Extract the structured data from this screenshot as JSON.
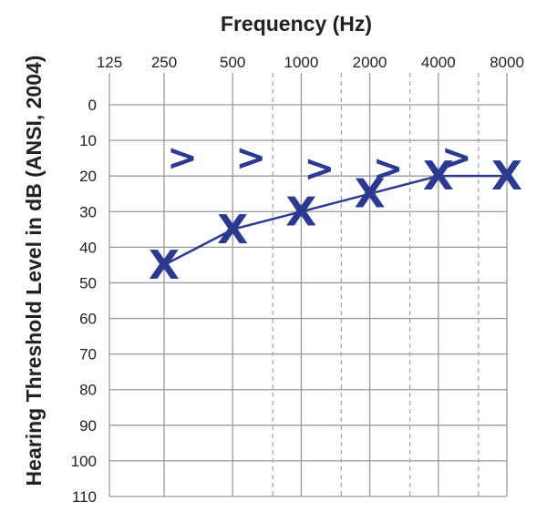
{
  "chart_data": {
    "type": "line",
    "title": "Frequency (Hz)",
    "xlabel": "Frequency (Hz)",
    "ylabel": "Hearing Threshold Level in dB (ANSI, 2004)",
    "x_ticks": [
      "125",
      "250",
      "500",
      "1000",
      "2000",
      "4000",
      "8000"
    ],
    "x_interoctave": [
      "750",
      "1500",
      "3000",
      "6000"
    ],
    "y_ticks": [
      "0",
      "10",
      "20",
      "30",
      "40",
      "50",
      "60",
      "70",
      "80",
      "90",
      "100",
      "110"
    ],
    "ylim": [
      0,
      110
    ],
    "y_inverted": true,
    "x_scale": "log",
    "grid": true,
    "series": [
      {
        "symbol": "X",
        "connected": true,
        "color": "#2b3990",
        "points": [
          {
            "x": 250,
            "y": 45
          },
          {
            "x": 500,
            "y": 35
          },
          {
            "x": 1000,
            "y": 30
          },
          {
            "x": 2000,
            "y": 25
          },
          {
            "x": 4000,
            "y": 20
          },
          {
            "x": 8000,
            "y": 20
          }
        ]
      },
      {
        "symbol": ">",
        "connected": false,
        "color": "#2b3990",
        "points": [
          {
            "x": 250,
            "y": 15
          },
          {
            "x": 500,
            "y": 15
          },
          {
            "x": 1000,
            "y": 18
          },
          {
            "x": 2000,
            "y": 18
          },
          {
            "x": 4000,
            "y": 15
          }
        ]
      }
    ]
  }
}
